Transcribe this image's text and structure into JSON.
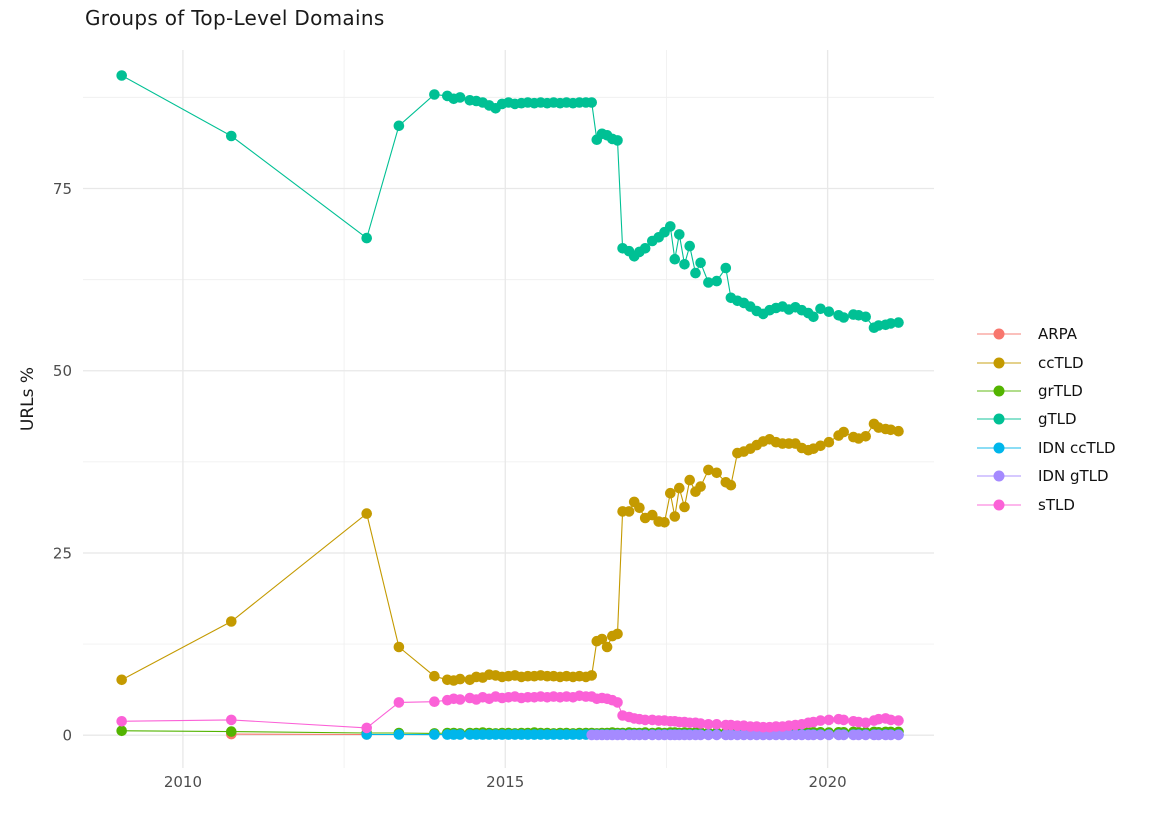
{
  "title": "Groups of Top-Level Domains",
  "y_axis_title": "URLs %",
  "chart_data": {
    "type": "line",
    "title": "Groups of Top-Level Domains",
    "xlabel": "",
    "ylabel": "URLs %",
    "grid": true,
    "legend_position": "right",
    "xlim": [
      2008.45,
      2021.65
    ],
    "ylim": [
      -4.5,
      94
    ],
    "x_ticks": [
      2010,
      2015,
      2020
    ],
    "x_tick_labels": [
      "2010",
      "2015",
      "2020"
    ],
    "x_minor_ticks": [
      2012.5,
      2017.5
    ],
    "y_ticks": [
      0,
      25,
      50,
      75
    ],
    "y_tick_labels": [
      "0",
      "25",
      "50",
      "75"
    ],
    "y_minor_ticks": [
      12.5,
      37.5,
      62.5,
      87.5
    ],
    "series": [
      {
        "name": "ARPA",
        "color": "#F8766D",
        "x": [
          2010.75,
          2012.85
        ],
        "y": [
          0.15,
          0.1
        ]
      },
      {
        "name": "ccTLD",
        "color": "#C49A00",
        "x": [
          2009.05,
          2010.75,
          2012.85,
          2013.35,
          2013.9,
          2014.1,
          2014.2,
          2014.3,
          2014.45,
          2014.55,
          2014.65,
          2014.75,
          2014.85,
          2014.95,
          2015.05,
          2015.15,
          2015.25,
          2015.35,
          2015.45,
          2015.55,
          2015.65,
          2015.75,
          2015.85,
          2015.95,
          2016.05,
          2016.15,
          2016.25,
          2016.34,
          2016.42,
          2016.5,
          2016.58,
          2016.66,
          2016.74,
          2016.82,
          2016.92,
          2017.0,
          2017.08,
          2017.17,
          2017.28,
          2017.38,
          2017.47,
          2017.56,
          2017.63,
          2017.7,
          2017.78,
          2017.86,
          2017.95,
          2018.03,
          2018.15,
          2018.28,
          2018.42,
          2018.5,
          2018.6,
          2018.7,
          2018.8,
          2018.9,
          2019.0,
          2019.1,
          2019.2,
          2019.3,
          2019.4,
          2019.5,
          2019.6,
          2019.7,
          2019.78,
          2019.89,
          2020.02,
          2020.17,
          2020.25,
          2020.4,
          2020.48,
          2020.59,
          2020.72,
          2020.79,
          2020.9,
          2020.98,
          2021.1
        ],
        "y": [
          7.6,
          15.6,
          30.4,
          12.1,
          8.1,
          7.6,
          7.5,
          7.7,
          7.6,
          8.0,
          7.9,
          8.3,
          8.2,
          8.0,
          8.1,
          8.2,
          8.0,
          8.1,
          8.1,
          8.2,
          8.1,
          8.1,
          8.0,
          8.1,
          8.0,
          8.1,
          8.0,
          8.2,
          12.9,
          13.2,
          12.1,
          13.6,
          13.9,
          30.7,
          30.7,
          32.0,
          31.2,
          29.8,
          30.2,
          29.3,
          29.2,
          33.2,
          30.0,
          33.9,
          31.3,
          35.0,
          33.4,
          34.1,
          36.4,
          36.0,
          34.7,
          34.3,
          38.7,
          38.9,
          39.3,
          39.8,
          40.3,
          40.6,
          40.2,
          40.0,
          40.0,
          40.0,
          39.4,
          39.1,
          39.3,
          39.7,
          40.2,
          41.1,
          41.6,
          40.9,
          40.7,
          41.0,
          42.7,
          42.2,
          42.0,
          41.9,
          41.7
        ]
      },
      {
        "name": "grTLD",
        "color": "#53B400",
        "x": [
          2009.05,
          2010.75,
          2012.85,
          2013.35,
          2013.9,
          2014.1,
          2014.2,
          2014.3,
          2014.45,
          2014.55,
          2014.65,
          2014.75,
          2014.85,
          2014.95,
          2015.05,
          2015.15,
          2015.25,
          2015.35,
          2015.45,
          2015.55,
          2015.65,
          2015.75,
          2015.85,
          2015.95,
          2016.05,
          2016.15,
          2016.25,
          2016.34,
          2016.42,
          2016.5,
          2016.58,
          2016.66,
          2016.74,
          2016.82,
          2016.92,
          2017.0,
          2017.08,
          2017.17,
          2017.28,
          2017.38,
          2017.47,
          2017.56,
          2017.63,
          2017.7,
          2017.78,
          2017.86,
          2017.95,
          2018.03,
          2018.15,
          2018.28,
          2018.42,
          2018.5,
          2018.6,
          2018.7,
          2018.8,
          2018.9,
          2019.0,
          2019.1,
          2019.2,
          2019.3,
          2019.4,
          2019.5,
          2019.6,
          2019.7,
          2019.78,
          2019.89,
          2020.02,
          2020.17,
          2020.25,
          2020.4,
          2020.48,
          2020.59,
          2020.72,
          2020.79,
          2020.9,
          2020.98,
          2021.1
        ],
        "y": [
          0.6,
          0.5,
          0.3,
          0.3,
          0.25,
          0.3,
          0.3,
          0.25,
          0.3,
          0.3,
          0.35,
          0.3,
          0.25,
          0.3,
          0.3,
          0.25,
          0.3,
          0.3,
          0.35,
          0.3,
          0.3,
          0.25,
          0.3,
          0.3,
          0.25,
          0.3,
          0.3,
          0.3,
          0.25,
          0.3,
          0.3,
          0.35,
          0.3,
          0.3,
          0.35,
          0.3,
          0.3,
          0.35,
          0.3,
          0.35,
          0.3,
          0.35,
          0.35,
          0.3,
          0.35,
          0.3,
          0.35,
          0.35,
          0.3,
          0.35,
          0.35,
          0.3,
          0.35,
          0.35,
          0.4,
          0.35,
          0.35,
          0.4,
          0.35,
          0.4,
          0.35,
          0.4,
          0.4,
          0.35,
          0.4,
          0.4,
          0.35,
          0.4,
          0.4,
          0.45,
          0.4,
          0.4,
          0.45,
          0.4,
          0.45,
          0.45,
          0.45
        ]
      },
      {
        "name": "gTLD",
        "color": "#00C094",
        "x": [
          2009.05,
          2010.75,
          2012.85,
          2013.35,
          2013.9,
          2014.1,
          2014.2,
          2014.3,
          2014.45,
          2014.55,
          2014.65,
          2014.75,
          2014.85,
          2014.95,
          2015.05,
          2015.15,
          2015.25,
          2015.35,
          2015.45,
          2015.55,
          2015.65,
          2015.75,
          2015.85,
          2015.95,
          2016.05,
          2016.15,
          2016.25,
          2016.34,
          2016.42,
          2016.5,
          2016.58,
          2016.66,
          2016.74,
          2016.82,
          2016.92,
          2017.0,
          2017.08,
          2017.17,
          2017.28,
          2017.38,
          2017.47,
          2017.56,
          2017.63,
          2017.7,
          2017.78,
          2017.86,
          2017.95,
          2018.03,
          2018.15,
          2018.28,
          2018.42,
          2018.5,
          2018.6,
          2018.7,
          2018.8,
          2018.9,
          2019.0,
          2019.1,
          2019.2,
          2019.3,
          2019.4,
          2019.5,
          2019.6,
          2019.7,
          2019.78,
          2019.89,
          2020.02,
          2020.17,
          2020.25,
          2020.4,
          2020.48,
          2020.59,
          2020.72,
          2020.79,
          2020.9,
          2020.98,
          2021.1
        ],
        "y": [
          90.5,
          82.2,
          68.2,
          83.6,
          87.9,
          87.7,
          87.3,
          87.5,
          87.1,
          87.0,
          86.8,
          86.4,
          86.0,
          86.6,
          86.8,
          86.6,
          86.7,
          86.8,
          86.7,
          86.8,
          86.7,
          86.8,
          86.7,
          86.8,
          86.7,
          86.8,
          86.8,
          86.8,
          81.7,
          82.5,
          82.3,
          81.8,
          81.6,
          66.8,
          66.4,
          65.7,
          66.3,
          66.8,
          67.8,
          68.3,
          69.0,
          69.8,
          65.3,
          68.7,
          64.6,
          67.1,
          63.4,
          64.8,
          62.1,
          62.3,
          64.1,
          60.0,
          59.6,
          59.3,
          58.8,
          58.2,
          57.8,
          58.3,
          58.6,
          58.8,
          58.4,
          58.7,
          58.3,
          57.9,
          57.4,
          58.5,
          58.1,
          57.6,
          57.3,
          57.7,
          57.6,
          57.4,
          55.9,
          56.2,
          56.3,
          56.5,
          56.6
        ]
      },
      {
        "name": "IDN ccTLD",
        "color": "#00B6EB",
        "x": [
          2012.85,
          2013.35,
          2013.9,
          2014.1,
          2014.2,
          2014.3,
          2014.45,
          2014.55,
          2014.65,
          2014.75,
          2014.85,
          2014.95,
          2015.05,
          2015.15,
          2015.25,
          2015.35,
          2015.45,
          2015.55,
          2015.65,
          2015.75,
          2015.85,
          2015.95,
          2016.05,
          2016.15,
          2016.25,
          2016.34,
          2016.42,
          2016.5,
          2016.58,
          2016.66,
          2016.74,
          2016.82,
          2016.92,
          2017.0,
          2017.08,
          2017.17,
          2017.28,
          2017.38,
          2017.47,
          2017.56,
          2017.63,
          2017.7,
          2017.78,
          2017.86,
          2017.95,
          2018.03,
          2018.15,
          2018.28,
          2018.42,
          2018.5,
          2018.6,
          2018.7,
          2018.8,
          2018.9,
          2019.0,
          2019.1,
          2019.2,
          2019.3,
          2019.4,
          2019.5,
          2019.6,
          2019.7,
          2019.78,
          2019.89,
          2020.02,
          2020.17,
          2020.25,
          2020.4,
          2020.48,
          2020.59,
          2020.72,
          2020.79,
          2020.9,
          2020.98,
          2021.1
        ],
        "y": [
          0.1,
          0.1,
          0.08,
          0.08,
          0.08,
          0.08,
          0.08,
          0.08,
          0.08,
          0.08,
          0.08,
          0.08,
          0.08,
          0.08,
          0.08,
          0.08,
          0.08,
          0.08,
          0.08,
          0.08,
          0.08,
          0.08,
          0.08,
          0.08,
          0.08,
          0.08,
          0.08,
          0.08,
          0.08,
          0.08,
          0.08,
          0.08,
          0.08,
          0.08,
          0.08,
          0.08,
          0.08,
          0.08,
          0.08,
          0.08,
          0.08,
          0.08,
          0.08,
          0.08,
          0.08,
          0.08,
          0.08,
          0.08,
          0.08,
          0.08,
          0.08,
          0.08,
          0.08,
          0.08,
          0.08,
          0.08,
          0.08,
          0.08,
          0.08,
          0.08,
          0.08,
          0.08,
          0.08,
          0.08,
          0.08,
          0.08,
          0.08,
          0.08,
          0.08,
          0.08,
          0.08,
          0.08,
          0.08,
          0.08,
          0.08
        ]
      },
      {
        "name": "IDN gTLD",
        "color": "#A58AFF",
        "x": [
          2016.34,
          2016.42,
          2016.5,
          2016.58,
          2016.66,
          2016.74,
          2016.82,
          2016.92,
          2017.0,
          2017.08,
          2017.17,
          2017.28,
          2017.38,
          2017.47,
          2017.56,
          2017.63,
          2017.7,
          2017.78,
          2017.86,
          2017.95,
          2018.03,
          2018.15,
          2018.28,
          2018.42,
          2018.5,
          2018.6,
          2018.7,
          2018.8,
          2018.9,
          2019.0,
          2019.1,
          2019.2,
          2019.3,
          2019.4,
          2019.5,
          2019.6,
          2019.7,
          2019.78,
          2019.89,
          2020.02,
          2020.17,
          2020.25,
          2020.4,
          2020.48,
          2020.59,
          2020.72,
          2020.79,
          2020.9,
          2020.98,
          2021.1
        ],
        "y": [
          0.04,
          0.04,
          0.04,
          0.04,
          0.04,
          0.04,
          0.04,
          0.04,
          0.04,
          0.04,
          0.04,
          0.04,
          0.04,
          0.04,
          0.04,
          0.04,
          0.04,
          0.04,
          0.04,
          0.04,
          0.04,
          0.04,
          0.04,
          0.04,
          0.04,
          0.04,
          0.04,
          0.04,
          0.04,
          0.04,
          0.04,
          0.04,
          0.04,
          0.04,
          0.04,
          0.04,
          0.04,
          0.04,
          0.04,
          0.04,
          0.04,
          0.04,
          0.04,
          0.04,
          0.04,
          0.04,
          0.04,
          0.04,
          0.04,
          0.04
        ]
      },
      {
        "name": "sTLD",
        "color": "#FB61D7",
        "x": [
          2009.05,
          2010.75,
          2012.85,
          2013.35,
          2013.9,
          2014.1,
          2014.2,
          2014.3,
          2014.45,
          2014.55,
          2014.65,
          2014.75,
          2014.85,
          2014.95,
          2015.05,
          2015.15,
          2015.25,
          2015.35,
          2015.45,
          2015.55,
          2015.65,
          2015.75,
          2015.85,
          2015.95,
          2016.05,
          2016.15,
          2016.25,
          2016.34,
          2016.42,
          2016.5,
          2016.58,
          2016.66,
          2016.74,
          2016.82,
          2016.92,
          2017.0,
          2017.08,
          2017.17,
          2017.28,
          2017.38,
          2017.47,
          2017.56,
          2017.63,
          2017.7,
          2017.78,
          2017.86,
          2017.95,
          2018.03,
          2018.15,
          2018.28,
          2018.42,
          2018.5,
          2018.6,
          2018.7,
          2018.8,
          2018.9,
          2019.0,
          2019.1,
          2019.2,
          2019.3,
          2019.4,
          2019.5,
          2019.6,
          2019.7,
          2019.78,
          2019.89,
          2020.02,
          2020.17,
          2020.25,
          2020.4,
          2020.48,
          2020.59,
          2020.72,
          2020.79,
          2020.9,
          2020.98,
          2021.1
        ],
        "y": [
          1.9,
          2.1,
          1.0,
          4.5,
          4.6,
          4.8,
          5.0,
          4.9,
          5.1,
          4.9,
          5.2,
          5.0,
          5.3,
          5.1,
          5.2,
          5.3,
          5.1,
          5.2,
          5.2,
          5.3,
          5.2,
          5.3,
          5.2,
          5.3,
          5.2,
          5.4,
          5.3,
          5.3,
          5.0,
          5.1,
          5.0,
          4.8,
          4.5,
          2.7,
          2.5,
          2.3,
          2.2,
          2.1,
          2.1,
          2.0,
          2.0,
          1.9,
          1.9,
          1.8,
          1.8,
          1.7,
          1.7,
          1.6,
          1.5,
          1.5,
          1.4,
          1.4,
          1.3,
          1.3,
          1.2,
          1.2,
          1.1,
          1.1,
          1.2,
          1.2,
          1.3,
          1.4,
          1.5,
          1.7,
          1.8,
          2.0,
          2.1,
          2.2,
          2.1,
          1.9,
          1.8,
          1.7,
          2.0,
          2.2,
          2.3,
          2.1,
          2.0
        ]
      }
    ],
    "style": {
      "grid_major_color": "#E8E8E8",
      "grid_minor_color": "#F0F0F0",
      "tick_label_color": "#4d4d4d",
      "text_color": "#1a1a1a",
      "background": "#ffffff"
    }
  }
}
